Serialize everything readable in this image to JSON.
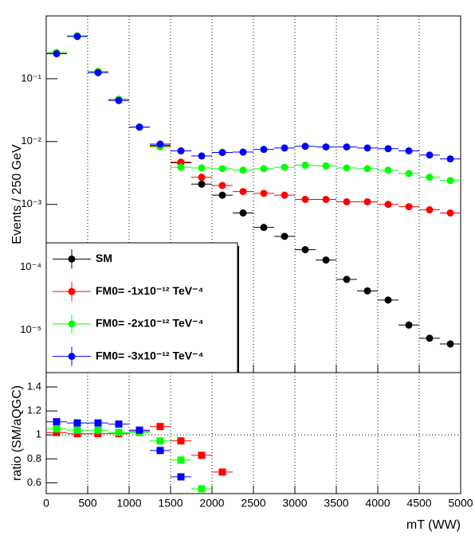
{
  "chart_data": [
    {
      "type": "scatter",
      "ylabel": "Events / 250 GeV",
      "log_y": true,
      "x": [
        125,
        375,
        625,
        875,
        1125,
        1375,
        1625,
        1875,
        2125,
        2375,
        2625,
        2875,
        3125,
        3375,
        3625,
        3875,
        4125,
        4375,
        4625,
        4875
      ],
      "xlim": [
        0,
        5000
      ],
      "xticks": [
        0,
        500,
        1000,
        1500,
        2000,
        2500,
        3000,
        3500,
        4000,
        4500,
        5000
      ],
      "ylim": [
        2.1e-06,
        1
      ],
      "yticks": [
        {
          "value": 1e-05,
          "label": "10⁻⁵"
        },
        {
          "value": 0.0001,
          "label": "10⁻⁴"
        },
        {
          "value": 0.001,
          "label": "10⁻³"
        },
        {
          "value": 0.01,
          "label": "10⁻²"
        },
        {
          "value": 0.1,
          "label": "10⁻¹"
        }
      ],
      "grid": "x",
      "legend": "bottom left",
      "series": [
        {
          "name": "SM",
          "color": "#000000",
          "values": [
            0.26,
            0.48,
            0.13,
            0.047,
            0.017,
            0.0087,
            0.0046,
            0.0021,
            0.0014,
            0.00073,
            0.00043,
            0.00031,
            0.00019,
            0.00013,
            6.4e-05,
            4.2e-05,
            3e-05,
            1.2e-05,
            7.4e-06,
            6e-06
          ]
        },
        {
          "name": "FM0= -1x10⁻¹² TeV⁻⁴",
          "color": "#ff0000",
          "values": [
            0.26,
            0.48,
            0.13,
            0.047,
            0.017,
            0.0085,
            0.0047,
            0.0027,
            0.002,
            0.0016,
            0.0015,
            0.0014,
            0.0012,
            0.0012,
            0.0011,
            0.0011,
            0.001,
            0.00092,
            0.00082,
            0.00073
          ]
        },
        {
          "name": "FM0= -2x10⁻¹² TeV⁻⁴",
          "color": "#00ff00",
          "values": [
            0.26,
            0.48,
            0.13,
            0.047,
            0.017,
            0.0082,
            0.0039,
            0.0038,
            0.0037,
            0.0035,
            0.0037,
            0.0039,
            0.0042,
            0.0041,
            0.0038,
            0.0037,
            0.0035,
            0.0031,
            0.0027,
            0.0024
          ]
        },
        {
          "name": "FM0= -3x10⁻¹² TeV⁻⁴",
          "color": "#0000ff",
          "values": [
            0.25,
            0.47,
            0.125,
            0.045,
            0.017,
            0.0091,
            0.0071,
            0.0059,
            0.0067,
            0.0068,
            0.0075,
            0.0079,
            0.0084,
            0.0082,
            0.0082,
            0.0079,
            0.0077,
            0.0071,
            0.0061,
            0.0053
          ]
        }
      ]
    },
    {
      "type": "scatter",
      "ylabel": "ratio (SM/aQGC)",
      "xlabel": "mT (WW)",
      "x": [
        125,
        375,
        625,
        875,
        1125,
        1375,
        1625,
        1875,
        2125
      ],
      "xlim": [
        0,
        5000
      ],
      "xticks": [
        0,
        500,
        1000,
        1500,
        2000,
        2500,
        3000,
        3500,
        4000,
        4500,
        5000
      ],
      "ylim": [
        0.51,
        1.52
      ],
      "yticks": [
        0.6,
        0.8,
        1,
        1.2,
        1.4
      ],
      "grid": "x",
      "reference_line": 1,
      "series": [
        {
          "color": "#ff0000",
          "values": [
            1.02,
            1.01,
            1.01,
            1.01,
            1.03,
            1.07,
            0.95,
            0.83,
            0.69
          ]
        },
        {
          "color": "#00ff00",
          "values": [
            1.05,
            1.04,
            1.04,
            1.02,
            1.02,
            0.95,
            0.79,
            0.55,
            null
          ]
        },
        {
          "color": "#0000ff",
          "values": [
            1.11,
            1.1,
            1.1,
            1.09,
            1.04,
            0.87,
            0.65,
            null,
            null
          ]
        }
      ]
    }
  ]
}
